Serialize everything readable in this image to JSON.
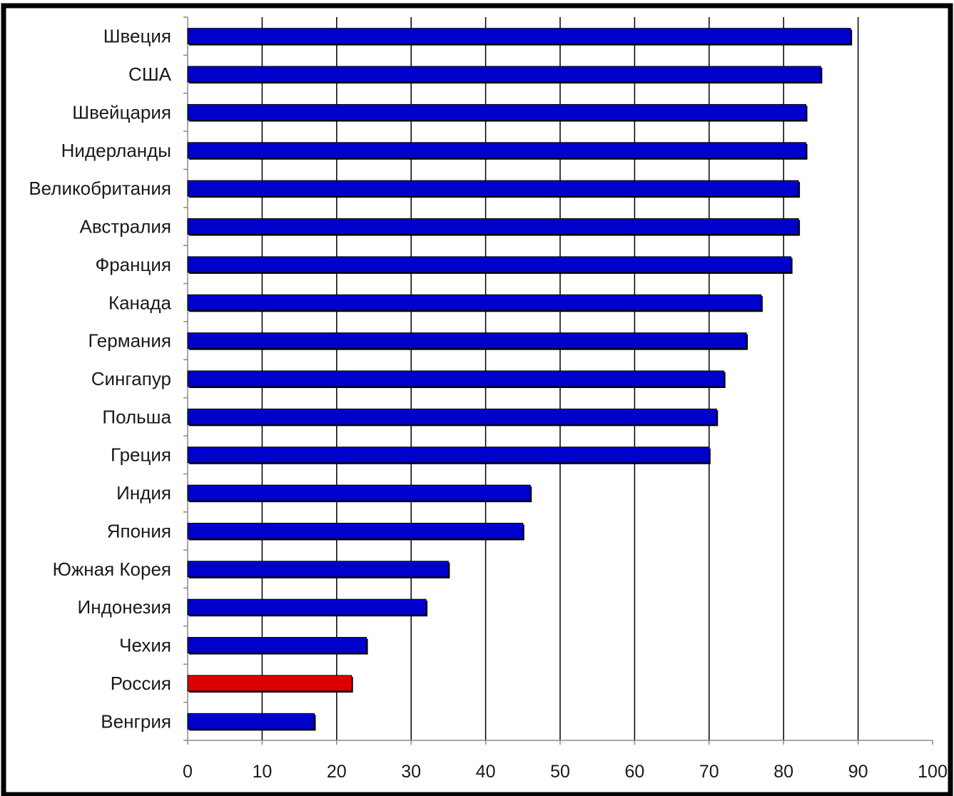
{
  "chart_data": {
    "type": "bar",
    "orientation": "horizontal",
    "categories": [
      "Швеция",
      "США",
      "Швейцария",
      "Нидерланды",
      "Великобритания",
      "Австралия",
      "Франция",
      "Канада",
      "Германия",
      "Сингапур",
      "Польша",
      "Греция",
      "Индия",
      "Япония",
      "Южная Корея",
      "Индонезия",
      "Чехия",
      "Россия",
      "Венгрия"
    ],
    "values": [
      89,
      85,
      83,
      83,
      82,
      82,
      81,
      77,
      75,
      72,
      71,
      70,
      46,
      45,
      35,
      32,
      24,
      22,
      17
    ],
    "highlight_category": "Россия",
    "colors": {
      "bar": "#0000cc",
      "highlight": "#dd0000",
      "grid": "#000000",
      "frame": "#000000",
      "axis_line": "#888888"
    },
    "title": "",
    "xlabel": "",
    "ylabel": "",
    "xlim": [
      0,
      100
    ],
    "x_ticks": [
      0,
      10,
      20,
      30,
      40,
      50,
      60,
      70,
      80,
      90,
      100
    ],
    "grid": "vertical"
  }
}
